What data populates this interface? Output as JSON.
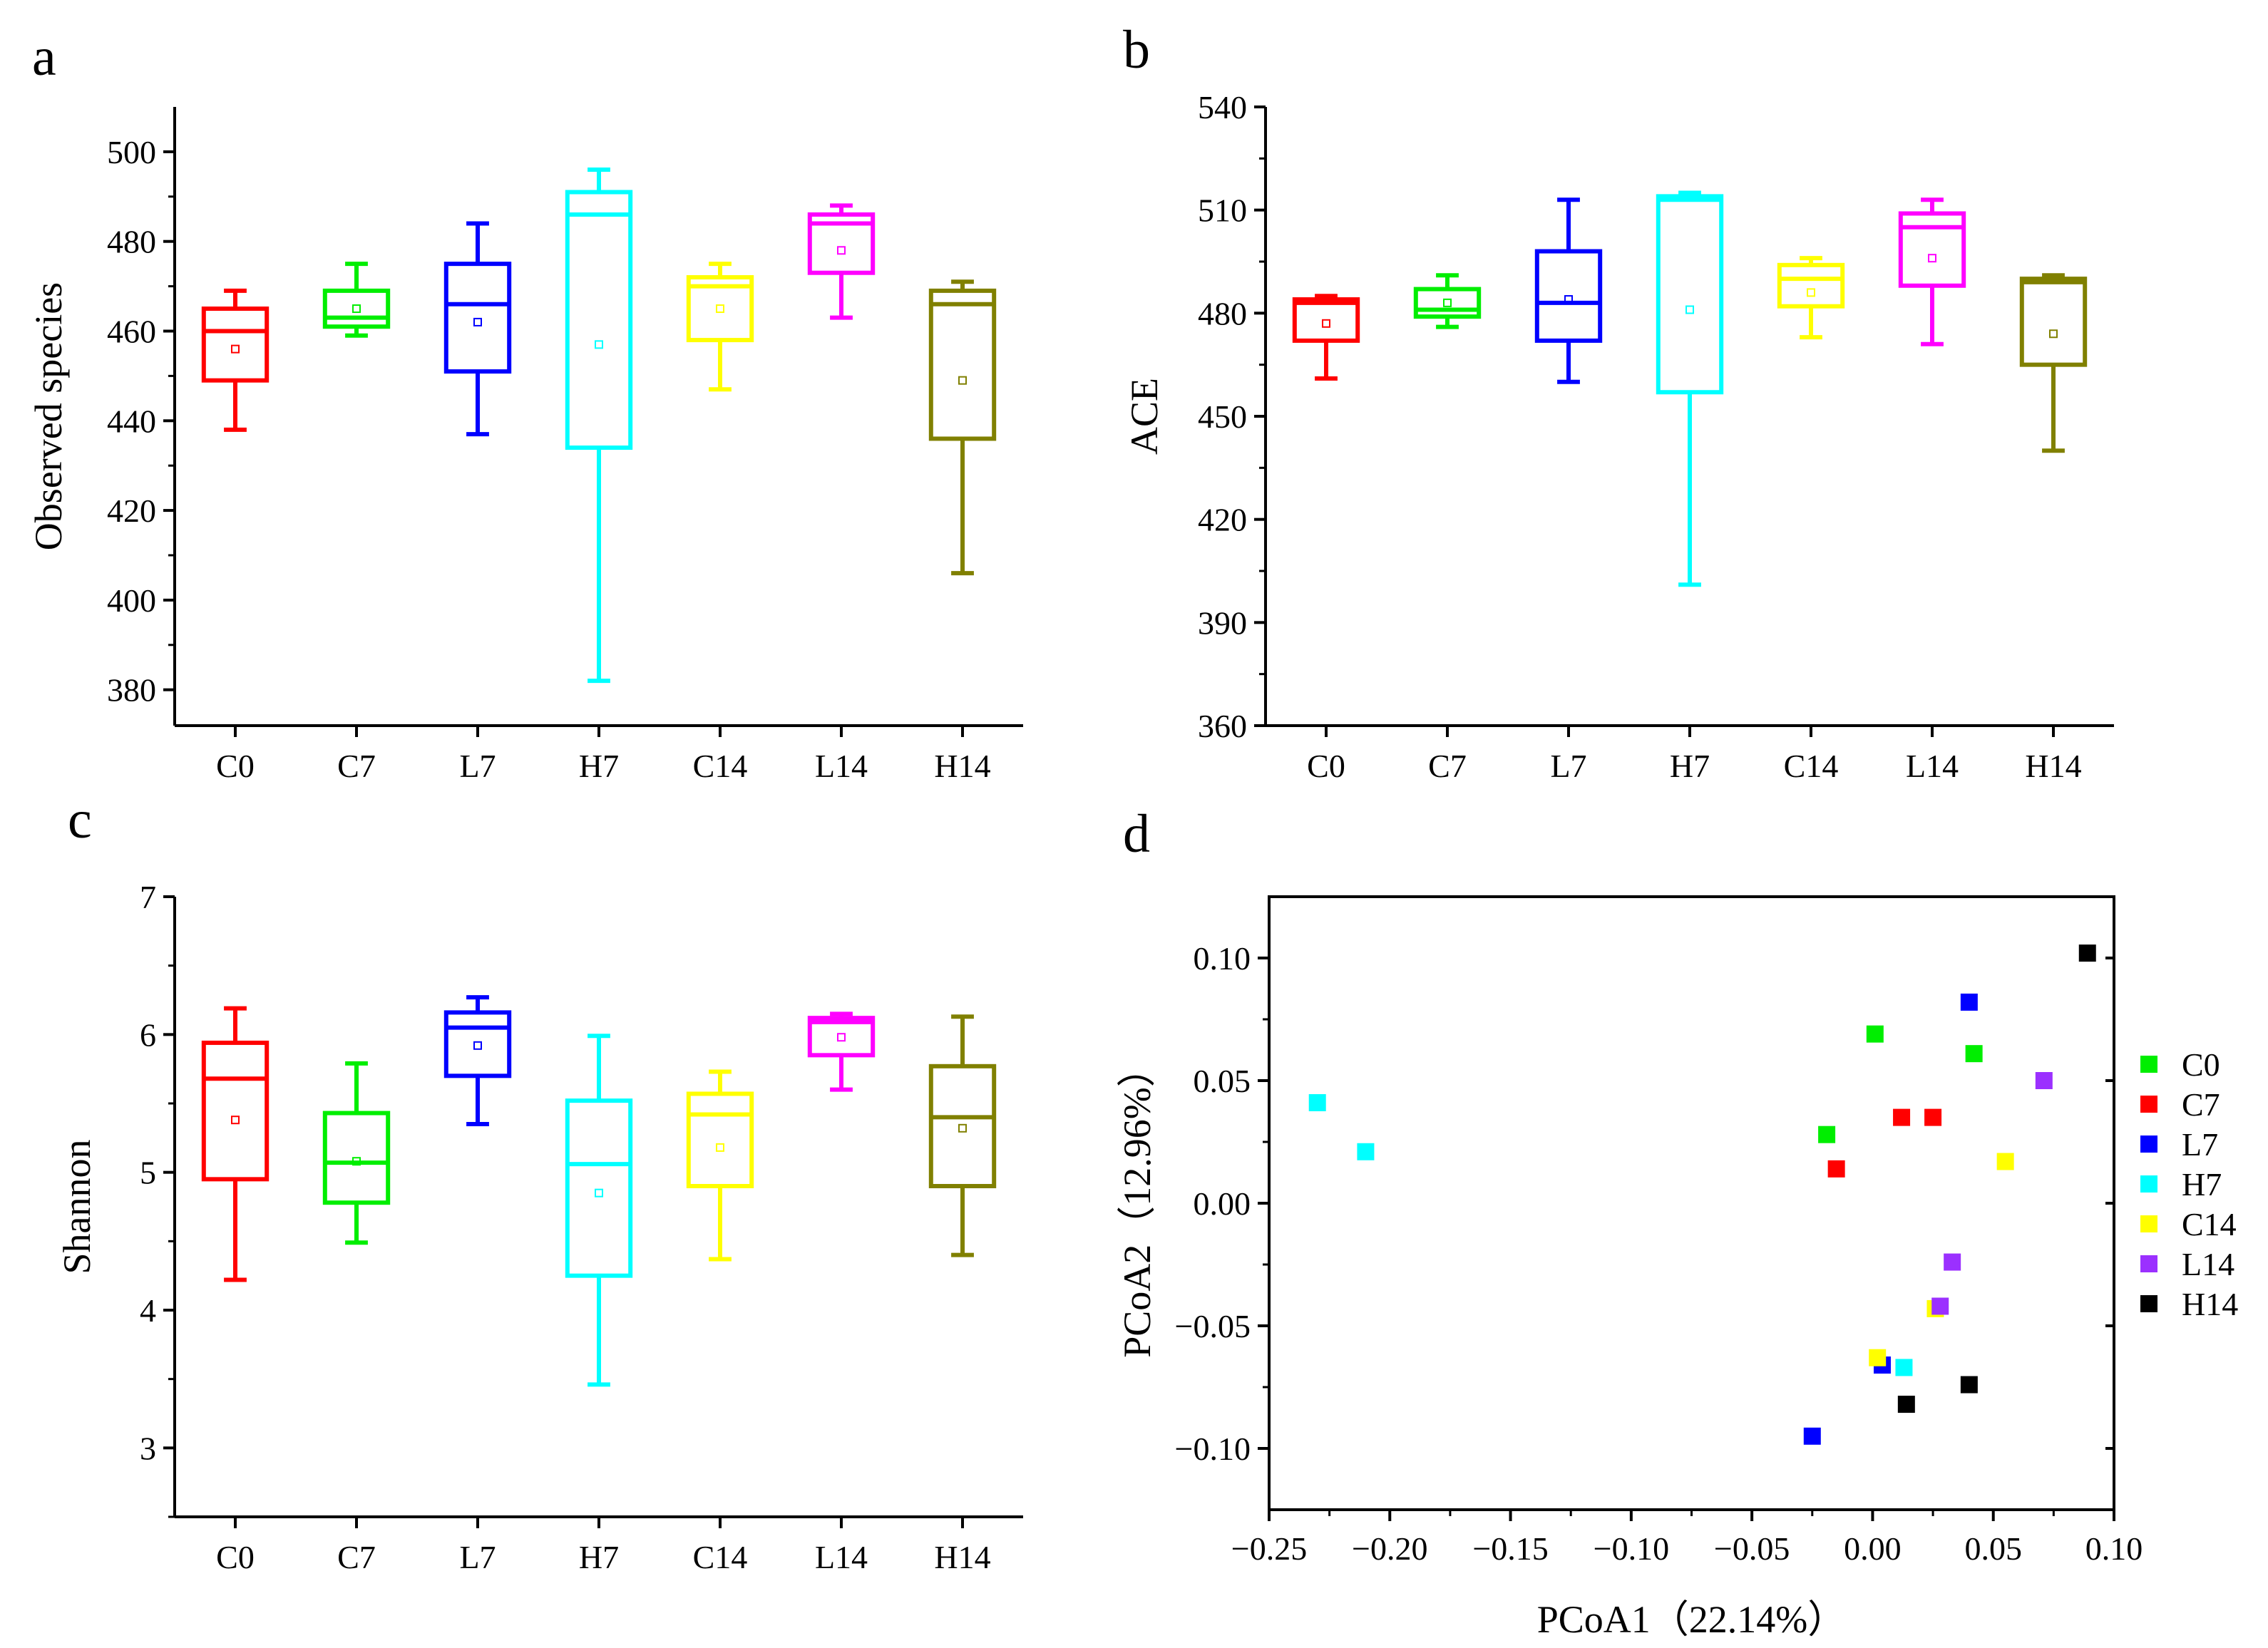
{
  "panel_letters": [
    "a",
    "b",
    "c",
    "d"
  ],
  "group_colors": {
    "C0": "#ff0000",
    "C7": "#00ee00",
    "L7": "#0000ff",
    "H7": "#00ffff",
    "C14": "#ffff00",
    "L14": "#ff00ff",
    "H14": "#808000"
  },
  "chart_data": [
    {
      "type": "box",
      "panel": "a",
      "title": "",
      "xlabel": "",
      "ylabel": "Observed species",
      "ylim": [
        372,
        510
      ],
      "yticks": [
        380,
        400,
        420,
        440,
        460,
        480,
        500
      ],
      "categories": [
        "C0",
        "C7",
        "L7",
        "H7",
        "C14",
        "L14",
        "H14"
      ],
      "boxes": [
        {
          "name": "C0",
          "min": 438,
          "q1": 449,
          "median": 460,
          "q3": 465,
          "max": 469,
          "mean": 456
        },
        {
          "name": "C7",
          "min": 459,
          "q1": 461,
          "median": 463,
          "q3": 469,
          "max": 475,
          "mean": 465
        },
        {
          "name": "L7",
          "min": 437,
          "q1": 451,
          "median": 466,
          "q3": 475,
          "max": 484,
          "mean": 462
        },
        {
          "name": "H7",
          "min": 382,
          "q1": 434,
          "median": 486,
          "q3": 491,
          "max": 496,
          "mean": 457
        },
        {
          "name": "C14",
          "min": 447,
          "q1": 458,
          "median": 470,
          "q3": 472,
          "max": 475,
          "mean": 465
        },
        {
          "name": "L14",
          "min": 463,
          "q1": 473,
          "median": 484,
          "q3": 486,
          "max": 488,
          "mean": 478
        },
        {
          "name": "H14",
          "min": 406,
          "q1": 436,
          "median": 466,
          "q3": 469,
          "max": 471,
          "mean": 449
        }
      ]
    },
    {
      "type": "box",
      "panel": "b",
      "title": "",
      "xlabel": "",
      "ylabel": "ACE",
      "ylim": [
        360,
        540
      ],
      "yticks": [
        360,
        390,
        420,
        450,
        480,
        510,
        540
      ],
      "categories": [
        "C0",
        "C7",
        "L7",
        "H7",
        "C14",
        "L14",
        "H14"
      ],
      "boxes": [
        {
          "name": "C0",
          "min": 461,
          "q1": 472,
          "median": 483,
          "q3": 484,
          "max": 485,
          "mean": 477
        },
        {
          "name": "C7",
          "min": 476,
          "q1": 479,
          "median": 481,
          "q3": 487,
          "max": 491,
          "mean": 483
        },
        {
          "name": "L7",
          "min": 460,
          "q1": 472,
          "median": 483,
          "q3": 498,
          "max": 513,
          "mean": 484
        },
        {
          "name": "H7",
          "min": 401,
          "q1": 457,
          "median": 513,
          "q3": 514,
          "max": 515,
          "mean": 481
        },
        {
          "name": "C14",
          "min": 473,
          "q1": 482,
          "median": 490,
          "q3": 494,
          "max": 496,
          "mean": 486
        },
        {
          "name": "L14",
          "min": 471,
          "q1": 488,
          "median": 505,
          "q3": 509,
          "max": 513,
          "mean": 496
        },
        {
          "name": "H14",
          "min": 440,
          "q1": 465,
          "median": 489,
          "q3": 490,
          "max": 491,
          "mean": 474
        }
      ]
    },
    {
      "type": "box",
      "panel": "c",
      "title": "",
      "xlabel": "",
      "ylabel": "Shannon",
      "ylim": [
        2.5,
        7
      ],
      "yticks": [
        3,
        4,
        5,
        6,
        7
      ],
      "categories": [
        "C0",
        "C7",
        "L7",
        "H7",
        "C14",
        "L14",
        "H14"
      ],
      "boxes": [
        {
          "name": "C0",
          "min": 4.22,
          "q1": 4.95,
          "median": 5.68,
          "q3": 5.94,
          "max": 6.19,
          "mean": 5.38
        },
        {
          "name": "C7",
          "min": 4.49,
          "q1": 4.78,
          "median": 5.07,
          "q3": 5.43,
          "max": 5.79,
          "mean": 5.08
        },
        {
          "name": "L7",
          "min": 5.35,
          "q1": 5.7,
          "median": 6.05,
          "q3": 6.16,
          "max": 6.27,
          "mean": 5.92
        },
        {
          "name": "H7",
          "min": 3.46,
          "q1": 4.25,
          "median": 5.06,
          "q3": 5.52,
          "max": 5.99,
          "mean": 4.85
        },
        {
          "name": "C14",
          "min": 4.37,
          "q1": 4.9,
          "median": 5.42,
          "q3": 5.57,
          "max": 5.73,
          "mean": 5.18
        },
        {
          "name": "L14",
          "min": 5.6,
          "q1": 5.85,
          "median": 6.09,
          "q3": 6.12,
          "max": 6.15,
          "mean": 5.98
        },
        {
          "name": "H14",
          "min": 4.4,
          "q1": 4.9,
          "median": 5.4,
          "q3": 5.77,
          "max": 6.13,
          "mean": 5.32
        }
      ]
    },
    {
      "type": "scatter",
      "panel": "d",
      "title": "",
      "xlabel": "PCoA1（22.14%）",
      "ylabel": "PCoA2（12.96%）",
      "xlim": [
        -0.25,
        0.1
      ],
      "ylim": [
        -0.125,
        0.125
      ],
      "xticks": [
        -0.25,
        -0.2,
        -0.15,
        -0.1,
        -0.05,
        0.0,
        0.05,
        0.1
      ],
      "xtick_labels": [
        "−0.25",
        "−0.20",
        "−0.15",
        "−0.10",
        "−0.05",
        "0.00",
        "0.05",
        "0.10"
      ],
      "yticks": [
        -0.1,
        -0.05,
        0.0,
        0.05,
        0.1
      ],
      "ytick_labels": [
        "−0.10",
        "−0.05",
        "0.00",
        "0.05",
        "0.10"
      ],
      "legend_position": "right",
      "series": [
        {
          "name": "C0",
          "color": "#00ee00",
          "points": [
            [
              0.001,
              0.069
            ],
            [
              0.042,
              0.061
            ],
            [
              -0.019,
              0.028
            ]
          ]
        },
        {
          "name": "C7",
          "color": "#ff0000",
          "points": [
            [
              0.012,
              0.035
            ],
            [
              0.025,
              0.035
            ],
            [
              -0.015,
              0.014
            ]
          ]
        },
        {
          "name": "L7",
          "color": "#0000ff",
          "points": [
            [
              0.04,
              0.082
            ],
            [
              -0.025,
              -0.095
            ],
            [
              0.004,
              -0.066
            ]
          ]
        },
        {
          "name": "H7",
          "color": "#00ffff",
          "points": [
            [
              -0.23,
              0.041
            ],
            [
              -0.21,
              0.021
            ],
            [
              0.013,
              -0.067
            ]
          ]
        },
        {
          "name": "C14",
          "color": "#ffff00",
          "points": [
            [
              0.055,
              0.017
            ],
            [
              0.026,
              -0.043
            ],
            [
              0.002,
              -0.063
            ]
          ]
        },
        {
          "name": "L14",
          "color": "#9b30ff",
          "points": [
            [
              0.071,
              0.05
            ],
            [
              0.033,
              -0.024
            ],
            [
              0.028,
              -0.042
            ]
          ]
        },
        {
          "name": "H14",
          "color": "#000000",
          "points": [
            [
              0.089,
              0.102
            ],
            [
              0.04,
              -0.074
            ],
            [
              0.014,
              -0.082
            ]
          ]
        }
      ]
    }
  ]
}
